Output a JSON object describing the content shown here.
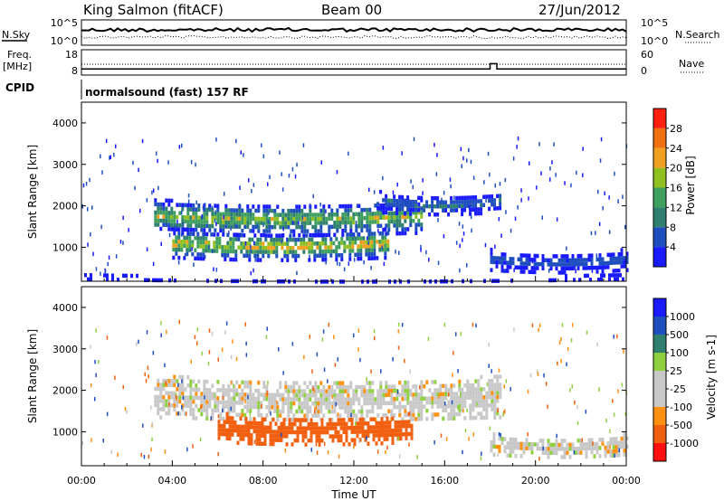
{
  "header": {
    "station": "King Salmon (fitACF)",
    "beam": "Beam 00",
    "date": "27/Jun/2012"
  },
  "noise_panel": {
    "left_label": "N.Sky",
    "left_ticks": [
      "10^5",
      "10^0"
    ],
    "right_label": "N.Search",
    "right_ticks": [
      "10^5",
      "10^0"
    ]
  },
  "freq_panel": {
    "left_label_line1": "Freq.",
    "left_label_line2": "[MHz]",
    "left_ticks": [
      "18",
      "8"
    ],
    "right_label": "Nave",
    "right_ticks": [
      "60",
      "0"
    ]
  },
  "cpid": {
    "label": "CPID",
    "value": "normalsound (fast) 157 RF"
  },
  "colors": {
    "power_scale": [
      "#1a1aff",
      "#1f4fbf",
      "#2f7f6f",
      "#3f9f5f",
      "#8fc020",
      "#f0a020",
      "#f07010",
      "#ff2010"
    ],
    "velocity_scale": [
      "#1a1aff",
      "#1f4fbf",
      "#2f7f6f",
      "#8fd040",
      "#c8c8c8",
      "#c8c8c8",
      "#ff9010",
      "#f06010",
      "#ff1010"
    ]
  },
  "chart_data": [
    {
      "type": "heatmap",
      "quantity": "power",
      "xlabel": "",
      "ylabel": "Slant Range [km]",
      "xlim": [
        0,
        24
      ],
      "ylim": [
        180,
        4500
      ],
      "yticks": [
        1000,
        2000,
        3000,
        4000
      ],
      "colorbar": {
        "label": "Power [dB]",
        "range": [
          0,
          32
        ],
        "ticks": [
          "4",
          "8",
          "12",
          "16",
          "20",
          "24",
          "28"
        ]
      },
      "echo_bands": [
        {
          "t_start": 3.2,
          "t_end": 15.0,
          "range_km": [
            1300,
            2100
          ],
          "peak_db": 20
        },
        {
          "t_start": 4.0,
          "t_end": 13.5,
          "range_km": [
            700,
            1400
          ],
          "peak_db": 24
        },
        {
          "t_start": 13.0,
          "t_end": 18.5,
          "range_km": [
            1800,
            2300
          ],
          "peak_db": 10
        },
        {
          "t_start": 18.0,
          "t_end": 24.0,
          "range_km": [
            400,
            900
          ],
          "peak_db": 8
        },
        {
          "t_start": 0.0,
          "t_end": 24.0,
          "range_km": [
            180,
            300
          ],
          "peak_db": 6
        }
      ]
    },
    {
      "type": "heatmap",
      "quantity": "velocity",
      "xlabel": "Time UT",
      "ylabel": "Slant Range [km]",
      "xlim": [
        0,
        24
      ],
      "xticks": [
        "00:00",
        "04:00",
        "08:00",
        "12:00",
        "16:00",
        "20:00",
        "00:00"
      ],
      "ylim": [
        180,
        4500
      ],
      "yticks": [
        1000,
        2000,
        3000,
        4000
      ],
      "colorbar": {
        "label": "Velocity [m s-1]",
        "ticks": [
          "1000",
          "500",
          "100",
          "25",
          "-25",
          "-100",
          "-500",
          "-1000"
        ]
      },
      "echo_bands": [
        {
          "t_start": 3.2,
          "t_end": 18.5,
          "range_km": [
            1300,
            2300
          ],
          "velocity": 0
        },
        {
          "t_start": 6.0,
          "t_end": 14.5,
          "range_km": [
            700,
            1400
          ],
          "velocity": -150
        },
        {
          "t_start": 18.0,
          "t_end": 24.0,
          "range_km": [
            400,
            900
          ],
          "velocity": 0
        }
      ]
    }
  ]
}
